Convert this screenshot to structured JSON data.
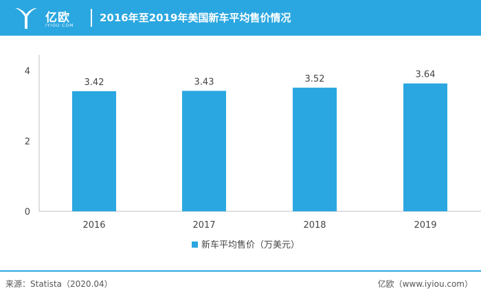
{
  "header": {
    "logo_name": "亿欧",
    "logo_sub": "IYIOU·COM",
    "title": "2016年至2019年美国新车平均售价情况"
  },
  "chart_data": {
    "type": "bar",
    "title": "2016年至2019年美国新车平均售价情况",
    "categories": [
      "2016",
      "2017",
      "2018",
      "2019"
    ],
    "series": [
      {
        "name": "新车平均售价（万美元）",
        "values": [
          3.42,
          3.43,
          3.52,
          3.64
        ]
      }
    ],
    "data_labels": [
      "3.42",
      "3.43",
      "3.52",
      "3.64"
    ],
    "y_ticks": [
      "0",
      "2",
      "4"
    ],
    "ylim": [
      0,
      5
    ],
    "xlabel": "",
    "ylabel": "",
    "legend_position": "bottom-center",
    "grid": false,
    "bar_color": "#2aa7e0"
  },
  "footer": {
    "source": "来源：Statista（2020.04）",
    "site": "亿欧（www.iyiou.com）"
  }
}
